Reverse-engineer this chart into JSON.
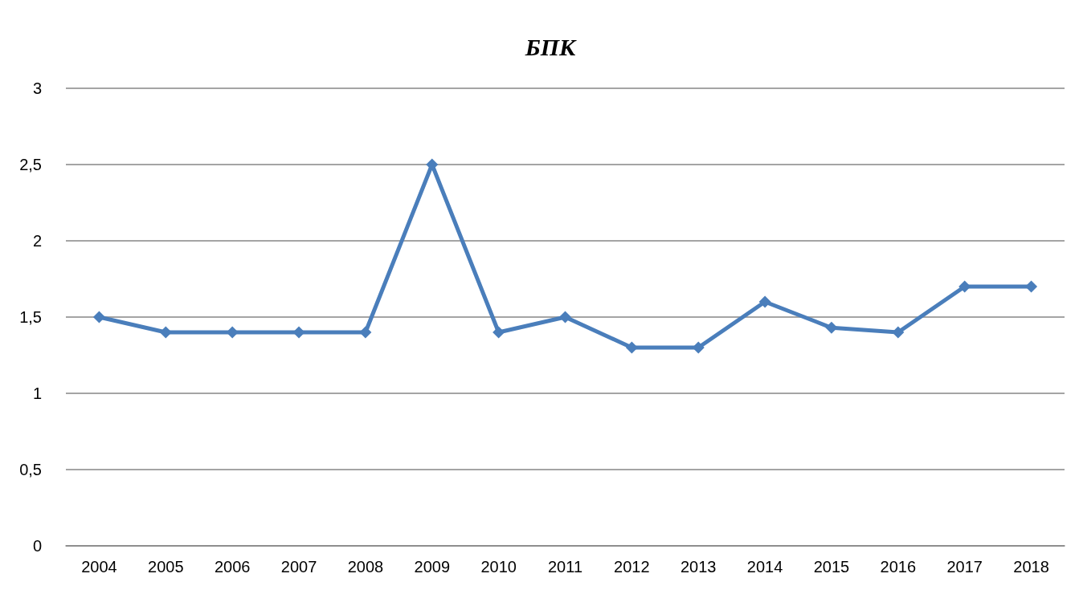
{
  "chart_data": {
    "type": "line",
    "title": "БПК",
    "categories": [
      "2004",
      "2005",
      "2006",
      "2007",
      "2008",
      "2009",
      "2010",
      "2011",
      "2012",
      "2013",
      "2014",
      "2015",
      "2016",
      "2017",
      "2018"
    ],
    "series": [
      {
        "color": "#4a7ebb",
        "values": [
          1.5,
          1.4,
          1.4,
          1.4,
          1.4,
          2.5,
          1.4,
          1.5,
          1.3,
          1.3,
          1.6,
          1.43,
          1.4,
          1.7,
          1.7
        ]
      }
    ],
    "ylim": [
      0,
      3
    ],
    "yticks": [
      0,
      {
        "value": 0.5,
        "label": "0,5"
      },
      1,
      {
        "value": 1.5,
        "label": "1,5"
      },
      2,
      {
        "value": 2.5,
        "label": "2,5"
      },
      3
    ],
    "grid": "y",
    "marker": "diamond",
    "line_style": "solid"
  }
}
